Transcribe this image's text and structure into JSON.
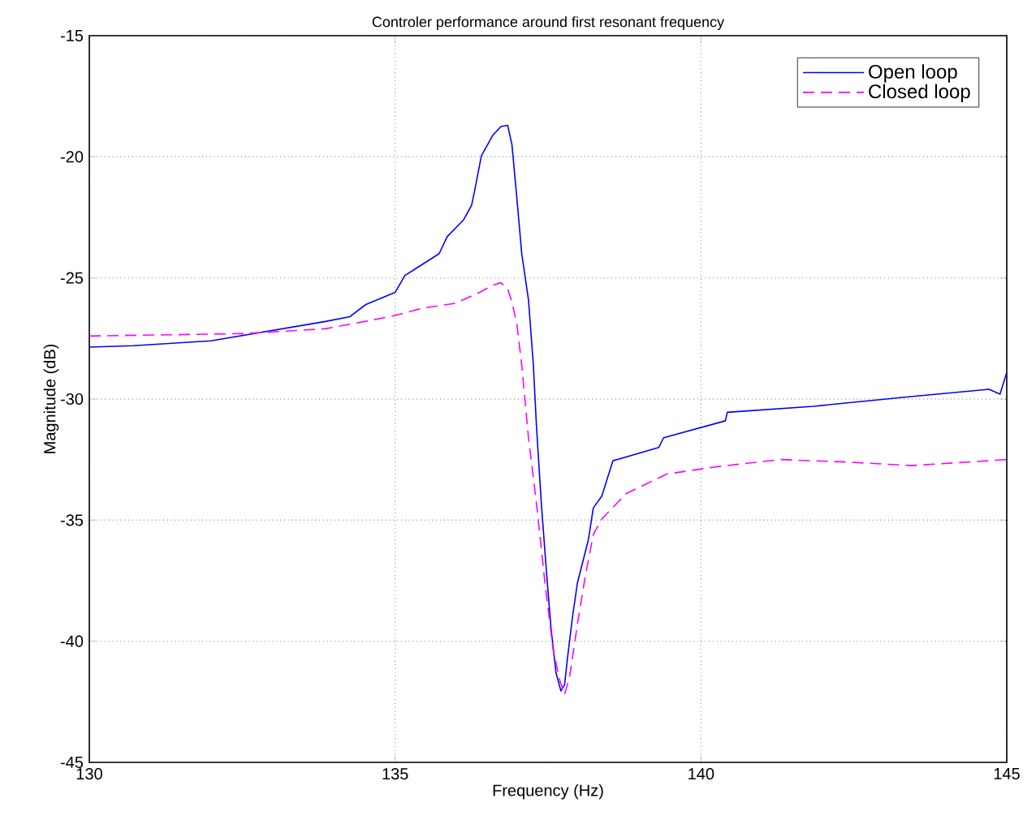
{
  "chart_data": {
    "type": "line",
    "title": "Controler performance around first resonant frequency",
    "xlabel": "Frequency (Hz)",
    "ylabel": "Magnitude (dB)",
    "xlim": [
      130,
      145
    ],
    "ylim": [
      -45,
      -15
    ],
    "xticks": [
      130,
      135,
      140,
      145
    ],
    "yticks": [
      -45,
      -40,
      -35,
      -30,
      -25,
      -20,
      -15
    ],
    "grid": true,
    "legend": "top right",
    "series": [
      {
        "name": "Open loop",
        "color": "#0000ff",
        "line_style": "solid",
        "x": [
          130,
          130.72,
          131.99,
          133.86,
          134.26,
          134.52,
          135,
          135.16,
          135.72,
          135.85,
          136.12,
          136.25,
          136.3,
          136.41,
          136.6,
          136.73,
          136.84,
          136.91,
          136.99,
          137.07,
          137.18,
          137.26,
          137.31,
          137.39,
          137.47,
          137.55,
          137.63,
          137.71,
          137.77,
          137.82,
          137.9,
          137.98,
          138.16,
          138.24,
          138.38,
          138.56,
          139.31,
          139.39,
          140.4,
          140.43,
          141.84,
          143.43,
          144.71,
          144.89,
          145
        ],
        "values": [
          -27.86,
          -27.8,
          -27.6,
          -26.8,
          -26.6,
          -26.1,
          -25.6,
          -24.9,
          -24.0,
          -23.3,
          -22.6,
          -22.0,
          -21.4,
          -19.96,
          -19.1,
          -18.75,
          -18.7,
          -19.5,
          -21.7,
          -24.0,
          -25.9,
          -28.6,
          -31.1,
          -34.3,
          -37.0,
          -39.5,
          -41.3,
          -42.05,
          -41.8,
          -40.65,
          -39.0,
          -37.6,
          -35.8,
          -34.5,
          -34.0,
          -32.55,
          -32.0,
          -31.6,
          -30.9,
          -30.55,
          -30.3,
          -29.9,
          -29.6,
          -29.8,
          -28.9
        ]
      },
      {
        "name": "Closed loop",
        "color": "#ff00ff",
        "line_style": "dashed",
        "x": [
          130,
          132.53,
          133.86,
          134.92,
          135.45,
          135.98,
          136.38,
          136.6,
          136.73,
          136.84,
          136.91,
          136.99,
          137.07,
          137.18,
          137.31,
          137.45,
          137.58,
          137.69,
          137.77,
          137.85,
          137.98,
          138.11,
          138.24,
          138.38,
          138.78,
          139.44,
          140.24,
          141.3,
          142.37,
          143.43,
          145
        ],
        "values": [
          -27.4,
          -27.3,
          -27.1,
          -26.6,
          -26.25,
          -26.05,
          -25.6,
          -25.3,
          -25.2,
          -25.45,
          -26.0,
          -26.9,
          -28.6,
          -31.6,
          -34.3,
          -37.6,
          -40.3,
          -41.6,
          -42.2,
          -41.5,
          -39.3,
          -37.3,
          -35.6,
          -34.95,
          -33.9,
          -33.1,
          -32.8,
          -32.5,
          -32.6,
          -32.75,
          -32.5
        ]
      }
    ]
  }
}
